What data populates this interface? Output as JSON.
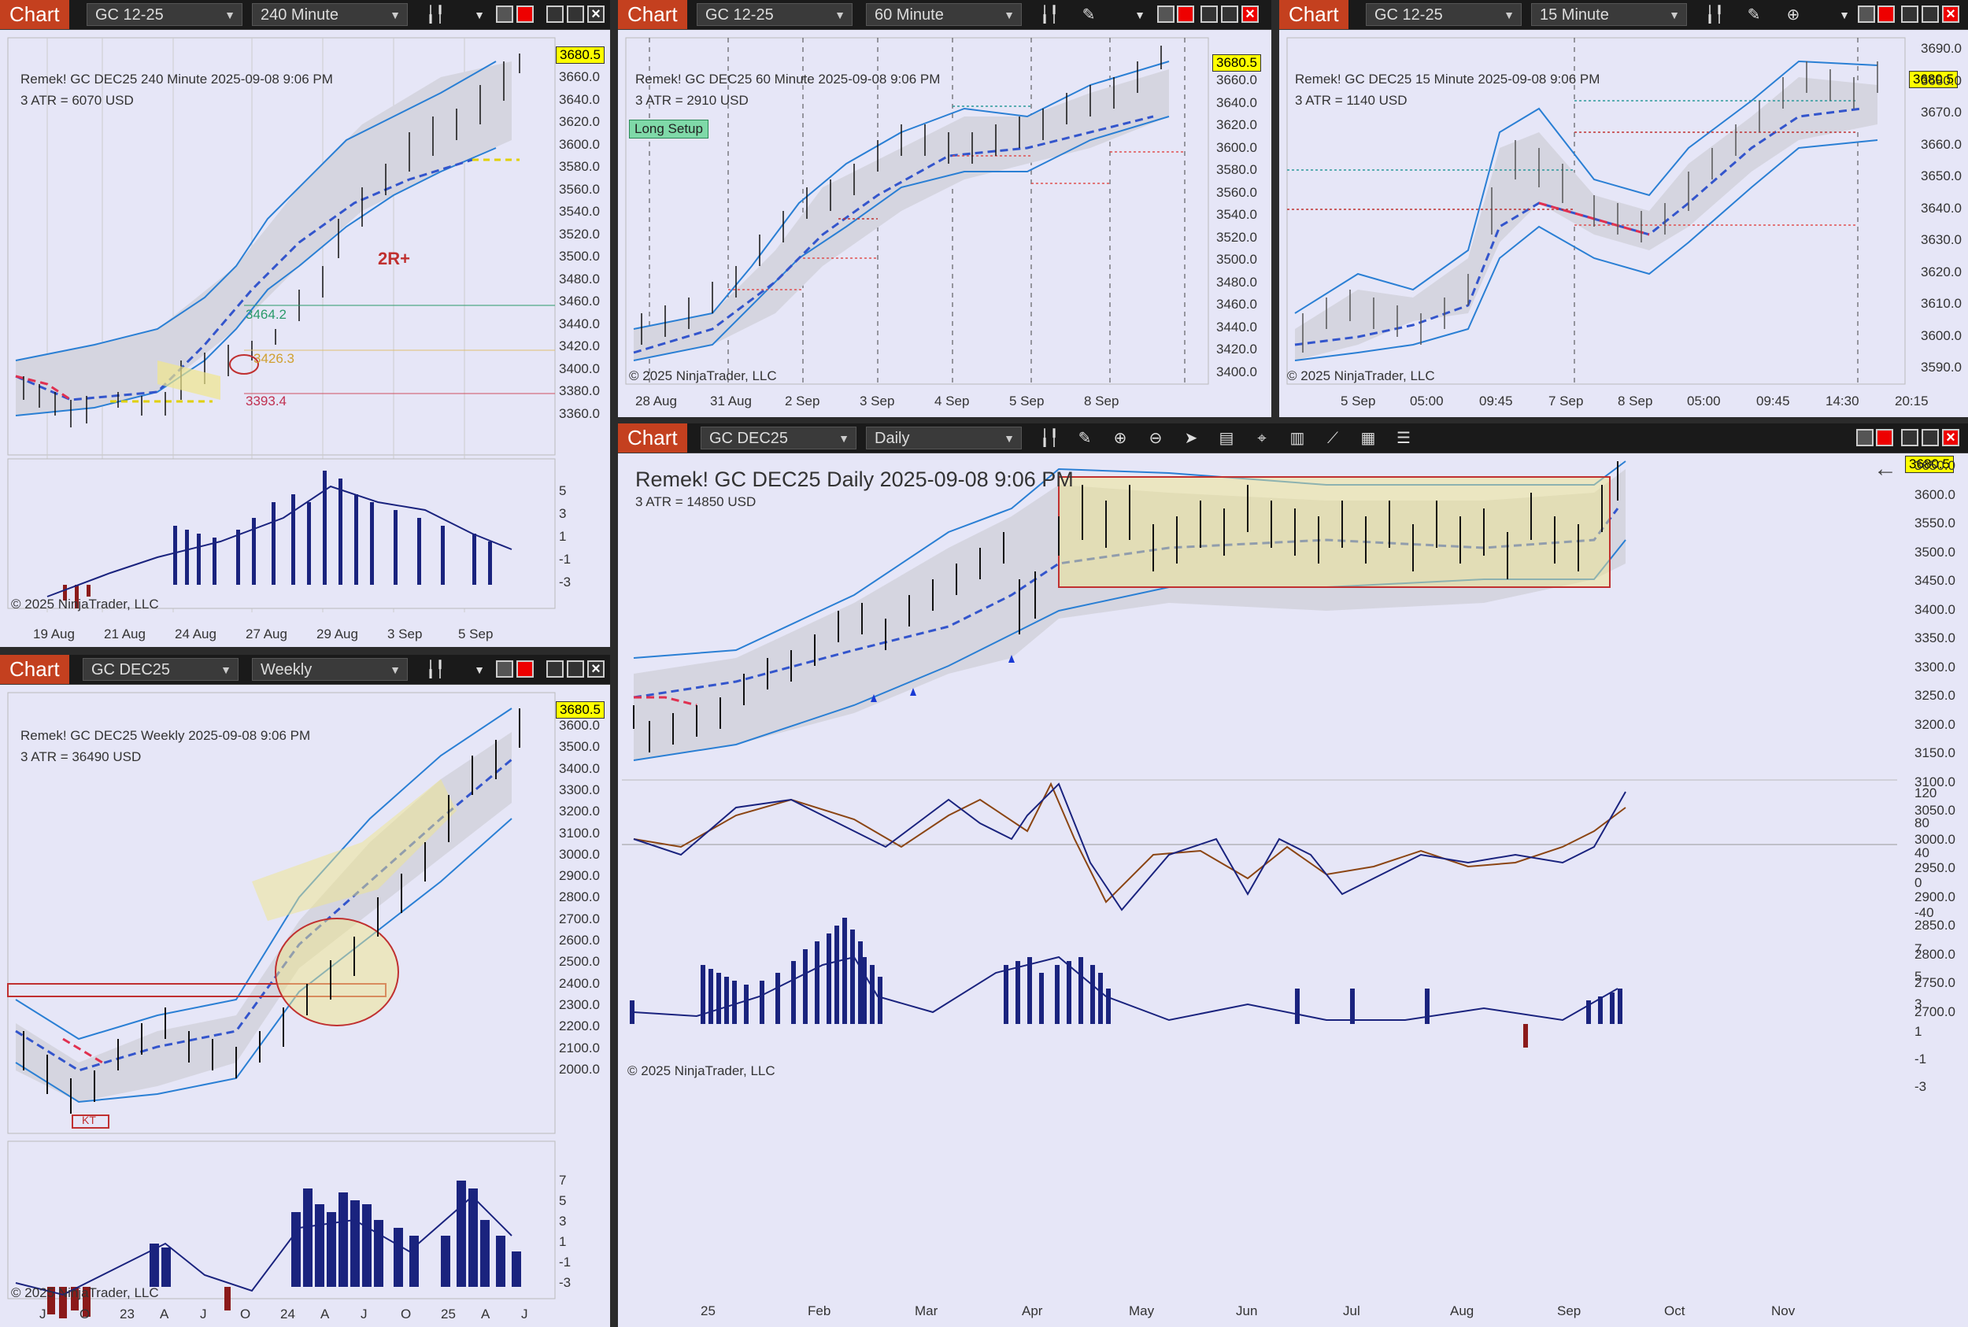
{
  "chart_btn": "Chart",
  "windows": {
    "w240": {
      "instrument": "GC 12-25",
      "interval": "240 Minute",
      "title": "Remek!  GC DEC25  240 Minute  2025-09-08 9:06 PM",
      "atr": "3 ATR = 6070 USD",
      "price": "3680.5",
      "copyright": "© 2025 NinjaTrader, LLC",
      "y_ticks": [
        "3660.0",
        "3640.0",
        "3620.0",
        "3600.0",
        "3580.0",
        "3560.0",
        "3540.0",
        "3520.0",
        "3500.0",
        "3480.0",
        "3460.0",
        "3440.0",
        "3420.0",
        "3400.0",
        "3380.0",
        "3360.0"
      ],
      "x_ticks": [
        "19 Aug",
        "21 Aug",
        "24 Aug",
        "27 Aug",
        "29 Aug",
        "3 Sep",
        "5 Sep"
      ],
      "osc_ticks": [
        "5",
        "3",
        "1",
        "-1",
        "-3"
      ],
      "annotations": {
        "r2": "2R+",
        "level1": "3464.2",
        "level2": "3426.3",
        "level3": "3393.4"
      }
    },
    "w60": {
      "instrument": "GC 12-25",
      "interval": "60 Minute",
      "title": "Remek!  GC DEC25  60 Minute  2025-09-08 9:06 PM",
      "atr": "3 ATR = 2910 USD",
      "price": "3680.5",
      "setup": "Long Setup",
      "copyright": "© 2025 NinjaTrader, LLC",
      "y_ticks": [
        "3660.0",
        "3640.0",
        "3620.0",
        "3600.0",
        "3580.0",
        "3560.0",
        "3540.0",
        "3520.0",
        "3500.0",
        "3480.0",
        "3460.0",
        "3440.0",
        "3420.0",
        "3400.0"
      ],
      "x_ticks": [
        "28 Aug",
        "31 Aug",
        "2 Sep",
        "3 Sep",
        "4 Sep",
        "5 Sep",
        "8 Sep"
      ]
    },
    "w15": {
      "instrument": "GC 12-25",
      "interval": "15 Minute",
      "title": "Remek!  GC DEC25  15 Minute  2025-09-08 9:06 PM",
      "atr": "3 ATR = 1140 USD",
      "price": "3680.5",
      "copyright": "© 2025 NinjaTrader, LLC",
      "y_ticks": [
        "3690.0",
        "3680.0",
        "3670.0",
        "3660.0",
        "3650.0",
        "3640.0",
        "3630.0",
        "3620.0",
        "3610.0",
        "3600.0",
        "3590.0"
      ],
      "x_ticks": [
        "5 Sep",
        "05:00",
        "09:45",
        "7 Sep",
        "8 Sep",
        "05:00",
        "09:45",
        "14:30",
        "20:15"
      ]
    },
    "wweek": {
      "instrument": "GC DEC25",
      "interval": "Weekly",
      "title": "Remek!  GC DEC25  Weekly  2025-09-08 9:06 PM",
      "atr": "3 ATR = 36490 USD",
      "price": "3680.5",
      "copyright": "© 2025 NinjaTrader, LLC",
      "y_ticks": [
        "3600.0",
        "3500.0",
        "3400.0",
        "3300.0",
        "3200.0",
        "3100.0",
        "3000.0",
        "2900.0",
        "2800.0",
        "2700.0",
        "2600.0",
        "2500.0",
        "2400.0",
        "2300.0",
        "2200.0",
        "2100.0",
        "2000.0"
      ],
      "x_ticks": [
        "J",
        "O",
        "23",
        "A",
        "J",
        "O",
        "24",
        "A",
        "J",
        "O",
        "25",
        "A",
        "J"
      ],
      "osc_ticks": [
        "7",
        "5",
        "3",
        "1",
        "-1",
        "-3"
      ],
      "label_kt": "KT"
    },
    "wdaily": {
      "instrument": "GC DEC25",
      "interval": "Daily",
      "title": "Remek!  GC DEC25  Daily  2025-09-08 9:06 PM",
      "atr": "3 ATR = 14850 USD",
      "price": "3680.5",
      "copyright": "© 2025 NinjaTrader, LLC",
      "y_ticks": [
        "3650.0",
        "3600.0",
        "3550.0",
        "3500.0",
        "3450.0",
        "3400.0",
        "3350.0",
        "3300.0",
        "3250.0",
        "3200.0",
        "3150.0",
        "3100.0",
        "3050.0",
        "3000.0",
        "2950.0",
        "2900.0",
        "2850.0",
        "2800.0",
        "2750.0",
        "2700.0"
      ],
      "x_ticks": [
        "25",
        "Feb",
        "Mar",
        "Apr",
        "May",
        "Jun",
        "Jul",
        "Aug",
        "Sep",
        "Oct",
        "Nov"
      ],
      "cci_ticks": [
        "120",
        "80",
        "40",
        "0",
        "-40"
      ],
      "osc_ticks": [
        "7",
        "5",
        "3",
        "1",
        "-1",
        "-3"
      ]
    }
  }
}
